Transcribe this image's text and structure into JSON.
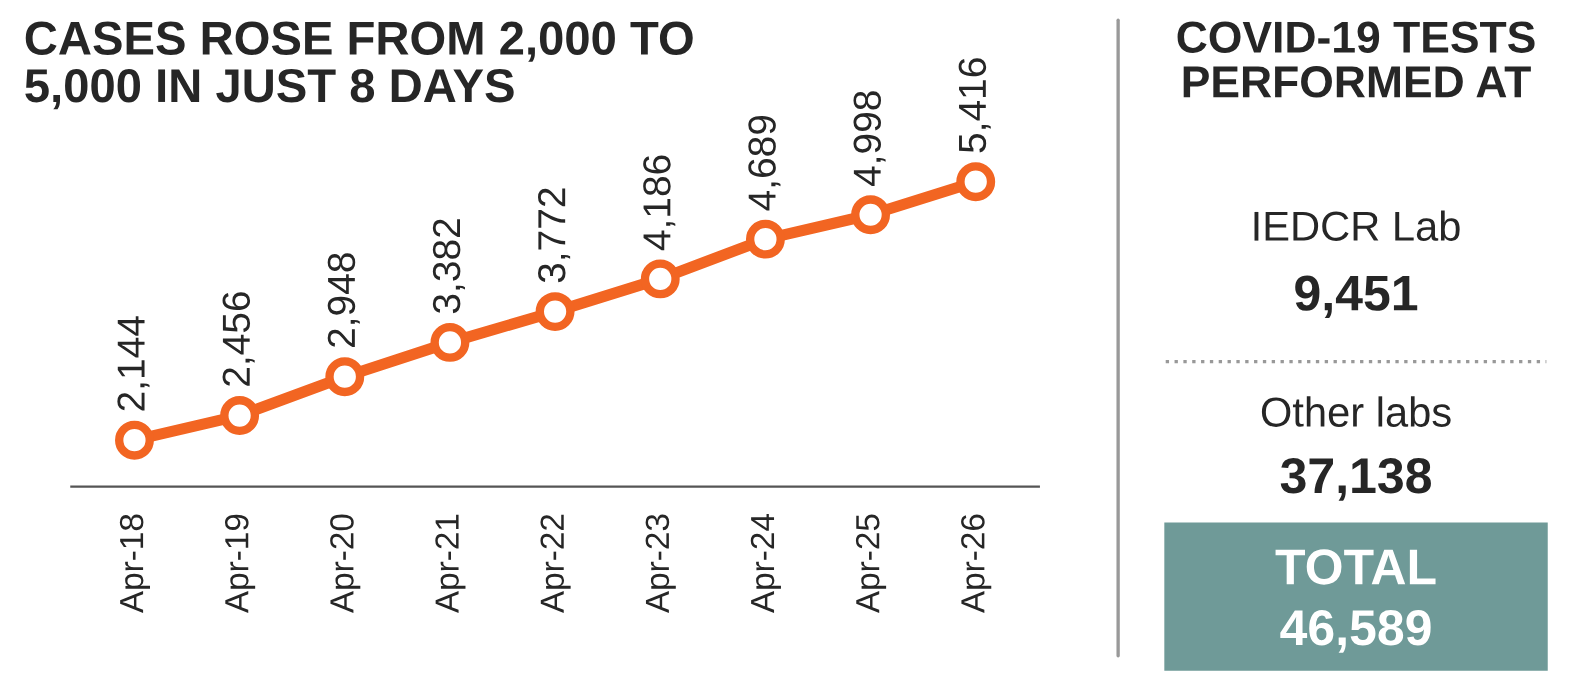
{
  "chart_data": [
    {
      "type": "line",
      "title": "CASES ROSE FROM 2,000 TO\n5,000 IN JUST 8 DAYS",
      "categories": [
        "Apr-18",
        "Apr-19",
        "Apr-20",
        "Apr-21",
        "Apr-22",
        "Apr-23",
        "Apr-24",
        "Apr-25",
        "Apr-26"
      ],
      "series": [
        {
          "type": "line",
          "color": "#f26522",
          "values": [
            2144,
            2456,
            2948,
            3382,
            3772,
            4186,
            4689,
            4998,
            5416
          ],
          "value_labels": [
            "2,144",
            "2,456",
            "2,948",
            "3,382",
            "3,772",
            "4,186",
            "4,689",
            "4,998",
            "5,416"
          ]
        }
      ],
      "tick_labels": "x",
      "marker": "circle",
      "line_style": "solid"
    },
    {
      "type": "other",
      "title": "COVID-19 TESTS\nPERFORMED AT",
      "annotations": [
        "IEDCR Lab",
        "9,451",
        "Other labs",
        "37,138",
        "TOTAL",
        "46,589"
      ]
    }
  ]
}
